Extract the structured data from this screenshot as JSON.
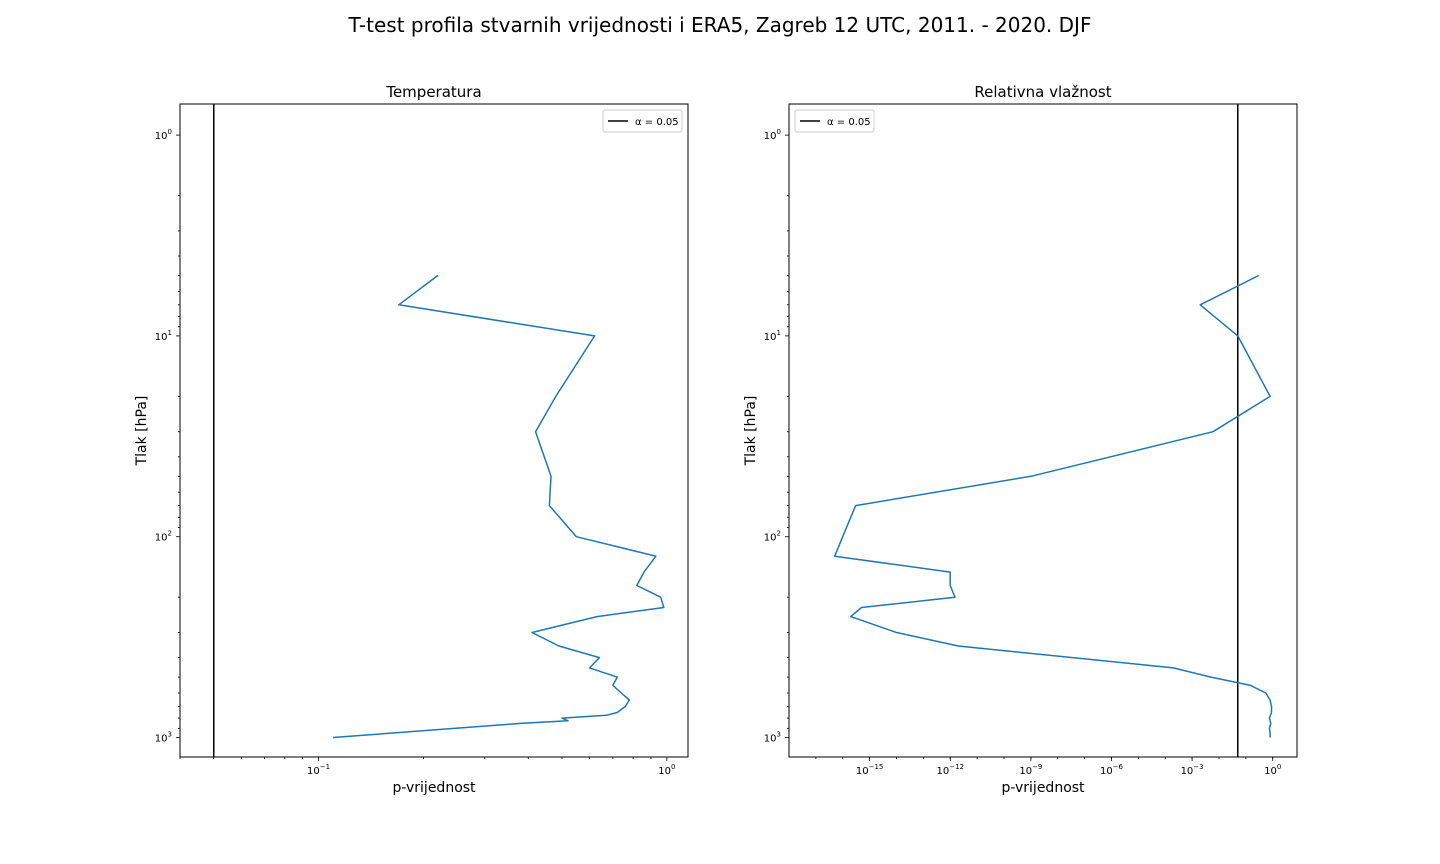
{
  "figure": {
    "title": "T-test profila stvarnih vrijednosti i ERA5, Zagreb 12 UTC, 2011. - 2020. DJF"
  },
  "chart_data": [
    {
      "type": "line",
      "title": "Temperatura",
      "xlabel": "p-vrijednost",
      "ylabel": "Tlak [hPa]",
      "x_scale": "log",
      "y_scale": "log",
      "y_inverted": true,
      "xlim": [
        0.04,
        1.15
      ],
      "ylim": [
        1250,
        0.7
      ],
      "x_ticks": [
        {
          "value": 0.1,
          "base": "10",
          "exp": "−1"
        },
        {
          "value": 1,
          "base": "10",
          "exp": "0"
        }
      ],
      "y_ticks": [
        {
          "value": 1,
          "base": "10",
          "exp": "0"
        },
        {
          "value": 10,
          "base": "10",
          "exp": "1"
        },
        {
          "value": 100,
          "base": "10",
          "exp": "2"
        },
        {
          "value": 1000,
          "base": "10",
          "exp": "3"
        }
      ],
      "alpha_line": {
        "x": 0.05,
        "label": "α = 0.05",
        "color": "#000000"
      },
      "legend": {
        "placement": "upper right",
        "entries": [
          "α = 0.05"
        ]
      },
      "series": [
        {
          "color": "#1f77b4",
          "points": [
            [
              0.22,
              5
            ],
            [
              0.17,
              7
            ],
            [
              0.62,
              10
            ],
            [
              0.48,
              20
            ],
            [
              0.42,
              30
            ],
            [
              0.465,
              50
            ],
            [
              0.46,
              70
            ],
            [
              0.55,
              100
            ],
            [
              0.93,
              125
            ],
            [
              0.86,
              150
            ],
            [
              0.82,
              175
            ],
            [
              0.96,
              200
            ],
            [
              0.98,
              225
            ],
            [
              0.63,
              250
            ],
            [
              0.41,
              300
            ],
            [
              0.49,
              350
            ],
            [
              0.64,
              400
            ],
            [
              0.6,
              450
            ],
            [
              0.72,
              500
            ],
            [
              0.7,
              550
            ],
            [
              0.74,
              600
            ],
            [
              0.78,
              650
            ],
            [
              0.76,
              700
            ],
            [
              0.72,
              750
            ],
            [
              0.67,
              775
            ],
            [
              0.5,
              800
            ],
            [
              0.52,
              825
            ],
            [
              0.38,
              850
            ],
            [
              0.11,
              1000
            ]
          ]
        }
      ]
    },
    {
      "type": "line",
      "title": "Relativna vlažnost",
      "xlabel": "p-vrijednost",
      "ylabel": "Tlak [hPa]",
      "x_scale": "log",
      "y_scale": "log",
      "y_inverted": true,
      "xlim": [
        1e-18,
        8
      ],
      "ylim": [
        1250,
        0.7
      ],
      "x_ticks": [
        {
          "value": 1e-15,
          "base": "10",
          "exp": "−15"
        },
        {
          "value": 1e-12,
          "base": "10",
          "exp": "−12"
        },
        {
          "value": 1e-09,
          "base": "10",
          "exp": "−9"
        },
        {
          "value": 1e-06,
          "base": "10",
          "exp": "−6"
        },
        {
          "value": 0.001,
          "base": "10",
          "exp": "−3"
        },
        {
          "value": 1,
          "base": "10",
          "exp": "0"
        }
      ],
      "y_ticks": [
        {
          "value": 1,
          "base": "10",
          "exp": "0"
        },
        {
          "value": 10,
          "base": "10",
          "exp": "1"
        },
        {
          "value": 100,
          "base": "10",
          "exp": "2"
        },
        {
          "value": 1000,
          "base": "10",
          "exp": "3"
        }
      ],
      "alpha_line": {
        "x": 0.05,
        "label": "α = 0.05",
        "color": "#000000"
      },
      "legend": {
        "placement": "upper left",
        "entries": [
          "α = 0.05"
        ]
      },
      "series": [
        {
          "color": "#1f77b4",
          "points": [
            [
              0.3,
              5
            ],
            [
              0.002,
              7
            ],
            [
              0.05,
              10
            ],
            [
              0.8,
              20
            ],
            [
              0.006,
              30
            ],
            [
              1e-09,
              50
            ],
            [
              3e-16,
              70
            ],
            [
              1e-16,
              100
            ],
            [
              5e-17,
              125
            ],
            [
              1e-12,
              150
            ],
            [
              1e-12,
              175
            ],
            [
              1.5e-12,
              200
            ],
            [
              5e-16,
              225
            ],
            [
              2e-16,
              250
            ],
            [
              1e-14,
              300
            ],
            [
              2e-12,
              350
            ],
            [
              0.0002,
              450
            ],
            [
              0.005,
              500
            ],
            [
              0.15,
              550
            ],
            [
              0.55,
              600
            ],
            [
              0.8,
              650
            ],
            [
              0.9,
              700
            ],
            [
              0.9,
              750
            ],
            [
              0.75,
              800
            ],
            [
              0.85,
              850
            ],
            [
              0.75,
              900
            ],
            [
              0.8,
              950
            ],
            [
              0.8,
              1000
            ]
          ]
        }
      ]
    }
  ]
}
